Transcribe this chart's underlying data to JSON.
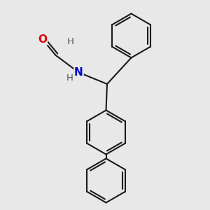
{
  "bg_color": "#e8e8e8",
  "bond_color": "#1a1a1a",
  "bond_width": 1.5,
  "dbo": 0.12,
  "atom_colors": {
    "O": "#dd0000",
    "N": "#0000cc",
    "H": "#555555"
  },
  "font_size_heavy": 11,
  "font_size_H": 9.5,
  "xlim": [
    0,
    10
  ],
  "ylim": [
    0,
    10
  ]
}
